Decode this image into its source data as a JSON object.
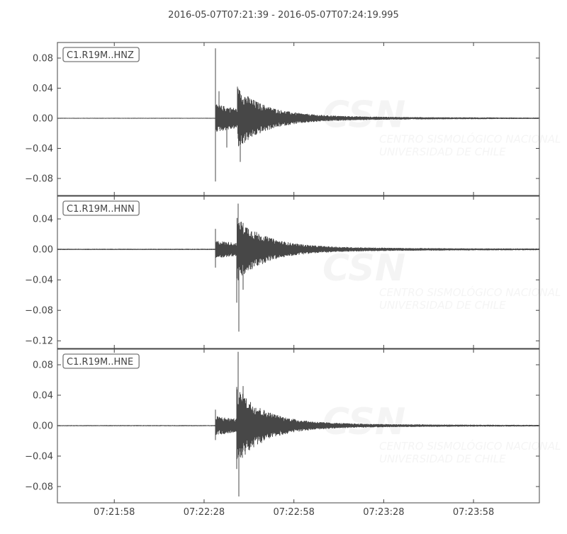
{
  "chart_data": {
    "type": "line",
    "title": "2016-05-07T07:21:39  -  2016-05-07T07:24:19.995",
    "date": "2016-05-07",
    "xlim": [
      "07:21:39",
      "07:24:19.995"
    ],
    "x_ticks": [
      "07:21:58",
      "07:22:28",
      "07:22:58",
      "07:23:28",
      "07:23:58"
    ],
    "grid": false,
    "line_color": "#474747",
    "watermark": {
      "logo": "CSN",
      "line1": "CENTRO SISMOLÓGICO NACIONAL",
      "line2": "UNIVERSIDAD DE CHILE"
    },
    "panels": [
      {
        "label": "C1.R19M..HNZ",
        "ylim": [
          -0.1026,
          0.1007
        ],
        "y_ticks": [
          0.08,
          0.04,
          0.0,
          -0.04,
          -0.08
        ],
        "y_tick_labels": [
          "0.08",
          "0.04",
          "0.00",
          "−0.04",
          "−0.08"
        ],
        "noise": 0.0006,
        "p_onset": "07:22:31.7",
        "p_amplitude": 0.018,
        "s_onset": "07:22:39.2",
        "s_amplitude": 0.026,
        "peaks": [
          {
            "time": "07:22:31.7",
            "value": 0.093
          },
          {
            "time": "07:22:31.9",
            "value": -0.084
          },
          {
            "time": "07:22:33.0",
            "value": 0.036
          },
          {
            "time": "07:22:35.5",
            "value": -0.039
          },
          {
            "time": "07:22:39.2",
            "value": 0.042
          },
          {
            "time": "07:22:40.0",
            "value": -0.058
          }
        ]
      },
      {
        "label": "C1.R19M..HNN",
        "ylim": [
          -0.13,
          0.0698
        ],
        "y_ticks": [
          0.04,
          0.0,
          -0.04,
          -0.08,
          -0.12
        ],
        "y_tick_labels": [
          "0.04",
          "0.00",
          "−0.04",
          "−0.08",
          "−0.12"
        ],
        "noise": 0.0008,
        "p_onset": "07:22:31.7",
        "p_amplitude": 0.011,
        "s_onset": "07:22:39.0",
        "s_amplitude": 0.032,
        "peaks": [
          {
            "time": "07:22:31.8",
            "value": 0.027
          },
          {
            "time": "07:22:31.8",
            "value": -0.024
          },
          {
            "time": "07:22:39.3",
            "value": 0.06
          },
          {
            "time": "07:22:39.0",
            "value": -0.07
          },
          {
            "time": "07:22:39.5",
            "value": -0.108
          },
          {
            "time": "07:22:41.0",
            "value": -0.053
          }
        ]
      },
      {
        "label": "C1.R19M..HNE",
        "ylim": [
          -0.1014,
          0.1005
        ],
        "y_ticks": [
          0.08,
          0.04,
          0.0,
          -0.04,
          -0.08
        ],
        "y_tick_labels": [
          "0.08",
          "0.04",
          "0.00",
          "−0.04",
          "−0.08"
        ],
        "noise": 0.0007,
        "p_onset": "07:22:31.7",
        "p_amplitude": 0.012,
        "s_onset": "07:22:38.8",
        "s_amplitude": 0.04,
        "peaks": [
          {
            "time": "07:22:31.8",
            "value": 0.021
          },
          {
            "time": "07:22:31.8",
            "value": -0.019
          },
          {
            "time": "07:22:39.3",
            "value": 0.097
          },
          {
            "time": "07:22:39.0",
            "value": -0.057
          },
          {
            "time": "07:22:39.5",
            "value": -0.093
          },
          {
            "time": "07:22:41.0",
            "value": 0.052
          }
        ]
      }
    ]
  }
}
